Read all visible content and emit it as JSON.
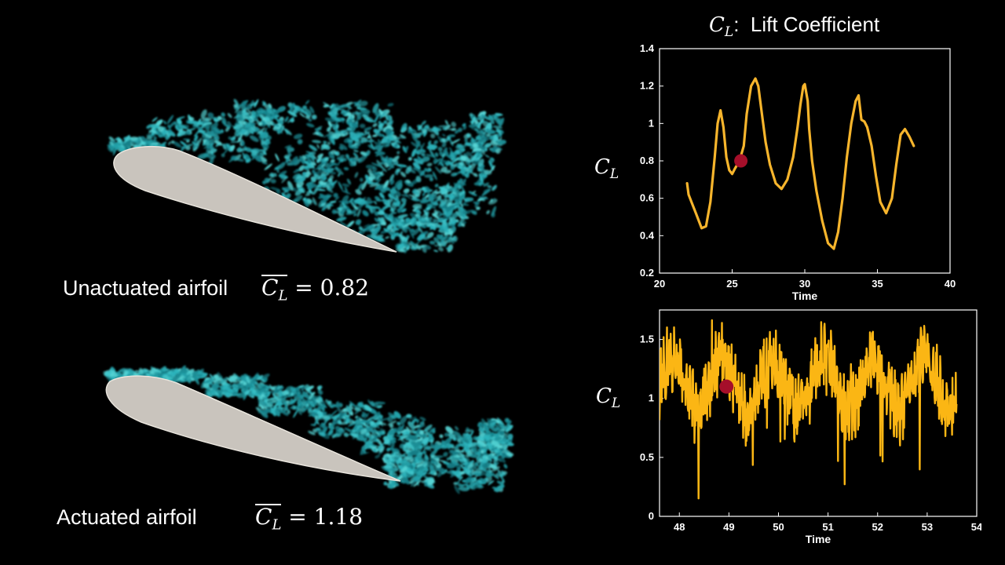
{
  "title": {
    "math": "C",
    "sub": "L",
    "colon": ":",
    "text": "Lift Coefficient"
  },
  "captions": {
    "unactuated": {
      "label": "Unactuated airfoil",
      "value": "0.82",
      "sym": "C",
      "sub": "L",
      "eq": "="
    },
    "actuated": {
      "label": "Actuated airfoil",
      "value": "1.18",
      "sym": "C",
      "sub": "L",
      "eq": "="
    }
  },
  "chart_data": [
    {
      "type": "line",
      "ylabel": {
        "sym": "C",
        "sub": "L"
      },
      "xlabel": "Time",
      "xlim": [
        20,
        40
      ],
      "ylim": [
        0.2,
        1.4
      ],
      "xticks": [
        20,
        25,
        30,
        35,
        40
      ],
      "yticks": [
        0.2,
        0.4,
        0.6,
        0.8,
        1,
        1.2,
        1.4
      ],
      "line_color": "#f7b52c",
      "marker_color": "#a50f2a",
      "marker": {
        "x": 25.6,
        "y": 0.8
      },
      "series": [
        {
          "x": [
            21.9,
            22.0,
            22.2,
            22.5,
            22.9,
            23.2,
            23.5,
            23.8,
            24.0,
            24.2,
            24.4,
            24.6,
            24.8,
            25.0,
            25.2,
            25.5,
            25.8,
            26.0,
            26.3,
            26.6,
            26.8,
            27.0,
            27.3,
            27.6,
            28.0,
            28.4,
            28.8,
            29.2,
            29.5,
            29.7,
            29.9,
            30.0,
            30.2,
            30.3,
            30.5,
            30.8,
            31.2,
            31.6,
            32.0,
            32.3,
            32.6,
            32.9,
            33.2,
            33.5,
            33.7,
            33.9,
            34.1,
            34.3,
            34.6,
            34.9,
            35.2,
            35.6,
            36.0,
            36.3,
            36.6,
            36.9,
            37.2,
            37.5
          ],
          "y": [
            0.68,
            0.62,
            0.58,
            0.52,
            0.44,
            0.45,
            0.58,
            0.82,
            1.0,
            1.07,
            0.98,
            0.82,
            0.75,
            0.73,
            0.76,
            0.8,
            0.88,
            1.05,
            1.2,
            1.24,
            1.2,
            1.08,
            0.9,
            0.78,
            0.68,
            0.65,
            0.7,
            0.82,
            0.98,
            1.1,
            1.2,
            1.21,
            1.12,
            0.97,
            0.8,
            0.64,
            0.48,
            0.36,
            0.33,
            0.42,
            0.6,
            0.82,
            1.0,
            1.12,
            1.15,
            1.02,
            1.01,
            0.98,
            0.88,
            0.72,
            0.58,
            0.52,
            0.6,
            0.78,
            0.94,
            0.97,
            0.93,
            0.88
          ]
        }
      ]
    },
    {
      "type": "line",
      "ylabel": {
        "sym": "C",
        "sub": "L"
      },
      "xlabel": "Time",
      "xlim": [
        47.6,
        54
      ],
      "ylim": [
        0,
        1.75
      ],
      "xticks": [
        48,
        49,
        50,
        51,
        52,
        53,
        54
      ],
      "yticks": [
        0,
        0.5,
        1,
        1.5
      ],
      "line_color": "#fbb614",
      "marker_color": "#a50f2a",
      "marker": {
        "x": 48.95,
        "y": 1.1
      },
      "noise": {
        "base": 1.12,
        "amplitude": 0.22,
        "period": 1.02,
        "jitter": 0.24,
        "x_end": 53.6
      }
    }
  ]
}
